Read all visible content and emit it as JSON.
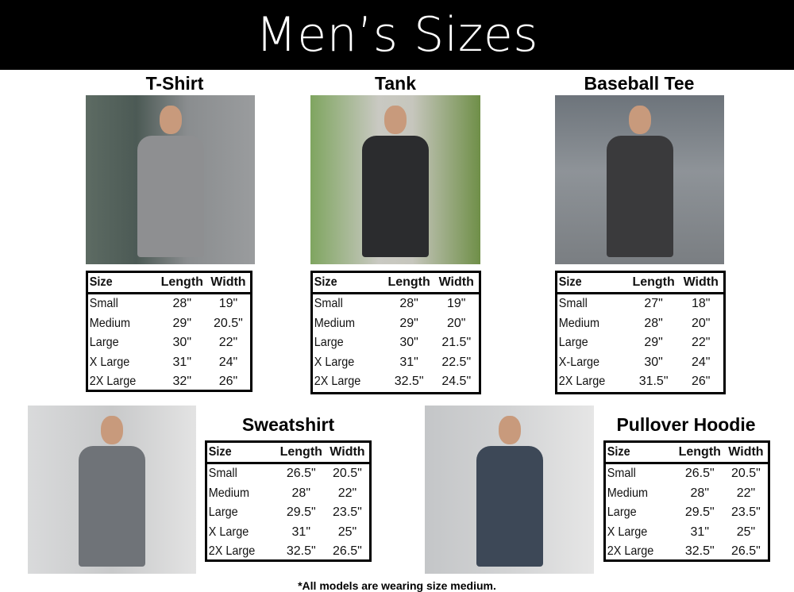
{
  "header": {
    "title": "Men’s Sizes"
  },
  "columns": [
    "Size",
    "Length",
    "Width"
  ],
  "products": [
    {
      "name": "T-Shirt",
      "rows": [
        [
          "Small",
          "28\"",
          "19\""
        ],
        [
          "Medium",
          "29\"",
          "20.5\""
        ],
        [
          "Large",
          "30\"",
          "22\""
        ],
        [
          "X Large",
          "31\"",
          "24\""
        ],
        [
          "2X Large",
          "32\"",
          "26\""
        ]
      ],
      "garment_color": "#8e8f91"
    },
    {
      "name": "Tank",
      "rows": [
        [
          "Small",
          "28\"",
          "19\""
        ],
        [
          "Medium",
          "29\"",
          "20\""
        ],
        [
          "Large",
          "30\"",
          "21.5\""
        ],
        [
          "X Large",
          "31\"",
          "22.5\""
        ],
        [
          "2X Large",
          "32.5\"",
          "24.5\""
        ]
      ],
      "garment_color": "#2b2c2e"
    },
    {
      "name": "Baseball Tee",
      "rows": [
        [
          "Small",
          "27\"",
          "18\""
        ],
        [
          "Medium",
          "28\"",
          "20\""
        ],
        [
          "Large",
          "29\"",
          "22\""
        ],
        [
          "X-Large",
          "30\"",
          "24\""
        ],
        [
          "2X Large",
          "31.5\"",
          "26\""
        ]
      ],
      "garment_color": "#3a3a3c"
    },
    {
      "name": "Sweatshirt",
      "rows": [
        [
          "Small",
          "26.5\"",
          "20.5\""
        ],
        [
          "Medium",
          "28\"",
          "22\""
        ],
        [
          "Large",
          "29.5\"",
          "23.5\""
        ],
        [
          "X Large",
          "31\"",
          "25\""
        ],
        [
          "2X Large",
          "32.5\"",
          "26.5\""
        ]
      ],
      "garment_color": "#6f7378"
    },
    {
      "name": "Pullover Hoodie",
      "rows": [
        [
          "Small",
          "26.5\"",
          "20.5\""
        ],
        [
          "Medium",
          "28\"",
          "22\""
        ],
        [
          "Large",
          "29.5\"",
          "23.5\""
        ],
        [
          "X Large",
          "31\"",
          "25\""
        ],
        [
          "2X Large",
          "32.5\"",
          "26.5\""
        ]
      ],
      "garment_color": "#3d4857"
    }
  ],
  "footnote": "*All models are wearing size medium."
}
